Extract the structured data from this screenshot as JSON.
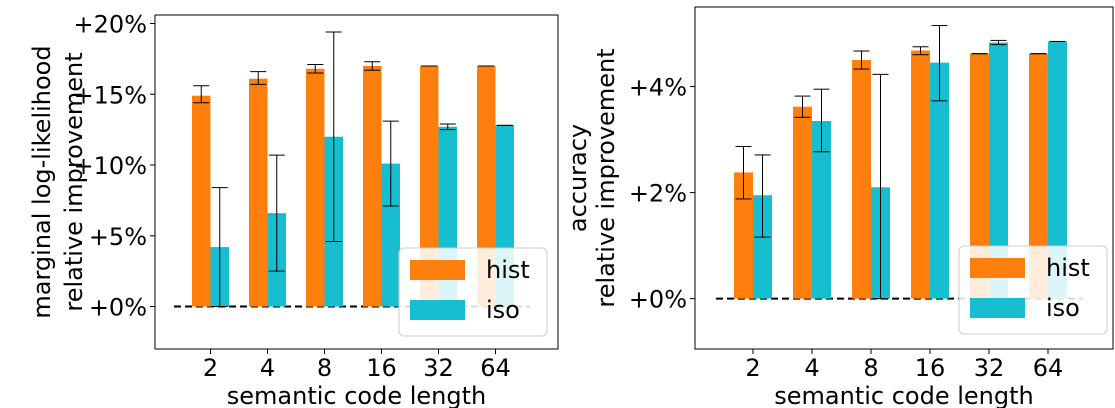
{
  "chart_data": [
    {
      "type": "bar",
      "categories": [
        "2",
        "4",
        "8",
        "16",
        "32",
        "64"
      ],
      "xlabel": "semantic code length",
      "ylabel_lines": [
        "marginal log-likelihood",
        "relative improvement"
      ],
      "ytick_labels": [
        "+0%",
        "+5%",
        "+10%",
        "+15%",
        "+20%"
      ],
      "ytick_values": [
        0,
        5,
        10,
        15,
        20
      ],
      "ylim": [
        -3,
        20.6
      ],
      "baseline": 0,
      "legend_position": "lower right",
      "series": [
        {
          "name": "hist",
          "color": "#ff7f0e",
          "values": [
            14.9,
            16.1,
            16.8,
            17.0,
            17.0,
            17.0
          ],
          "err_low": [
            14.4,
            15.7,
            16.5,
            16.7,
            17.0,
            17.0
          ],
          "err_high": [
            15.6,
            16.6,
            17.1,
            17.3,
            17.0,
            17.0
          ]
        },
        {
          "name": "iso",
          "color": "#17becf",
          "values": [
            4.2,
            6.6,
            12.0,
            10.1,
            12.7,
            12.8
          ],
          "err_low": [
            0.0,
            2.5,
            4.6,
            7.1,
            12.5,
            12.8
          ],
          "err_high": [
            8.4,
            10.7,
            19.4,
            13.1,
            12.9,
            12.8
          ]
        }
      ]
    },
    {
      "type": "bar",
      "categories": [
        "2",
        "4",
        "8",
        "16",
        "32",
        "64"
      ],
      "xlabel": "semantic code length",
      "ylabel_lines": [
        "accuracy",
        "relative improvement"
      ],
      "ytick_labels": [
        "+0%",
        "+2%",
        "+4%"
      ],
      "ytick_values": [
        0,
        2,
        4
      ],
      "ylim": [
        -0.95,
        5.5
      ],
      "baseline": 0,
      "legend_position": "lower right",
      "series": [
        {
          "name": "hist",
          "color": "#ff7f0e",
          "values": [
            2.38,
            3.62,
            4.5,
            4.68,
            4.62,
            4.62
          ],
          "err_low": [
            1.88,
            3.42,
            4.33,
            4.6,
            4.62,
            4.62
          ],
          "err_high": [
            2.87,
            3.82,
            4.67,
            4.75,
            4.62,
            4.62
          ]
        },
        {
          "name": "iso",
          "color": "#17becf",
          "values": [
            1.95,
            3.35,
            2.1,
            4.45,
            4.83,
            4.85
          ],
          "err_low": [
            1.16,
            2.77,
            0.0,
            3.73,
            4.79,
            4.85
          ],
          "err_high": [
            2.71,
            3.95,
            4.23,
            5.15,
            4.87,
            4.85
          ]
        }
      ]
    }
  ]
}
